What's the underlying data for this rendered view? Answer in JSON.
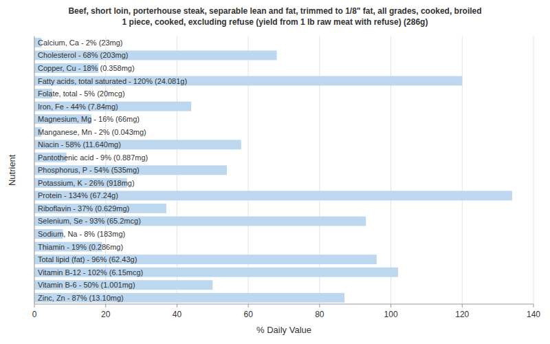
{
  "chart_data": {
    "type": "bar",
    "orientation": "horizontal",
    "title": "Beef, short loin, porterhouse steak, separable lean and fat, trimmed to 1/8\" fat, all grades, cooked, broiled\n1 piece, cooked, excluding refuse (yield from 1 lb raw meat with refuse) (286g)",
    "xlabel": "% Daily Value",
    "ylabel": "Nutrient",
    "categories": [
      "Calcium, Ca - 2% (23mg)",
      "Cholesterol - 68% (203mg)",
      "Copper, Cu - 18% (0.358mg)",
      "Fatty acids, total saturated - 120% (24.081g)",
      "Folate, total - 5% (20mcg)",
      "Iron, Fe - 44% (7.84mg)",
      "Magnesium, Mg - 16% (66mg)",
      "Manganese, Mn - 2% (0.043mg)",
      "Niacin - 58% (11.640mg)",
      "Pantothenic acid - 9% (0.887mg)",
      "Phosphorus, P - 54% (535mg)",
      "Potassium, K - 26% (918mg)",
      "Protein - 134% (67.24g)",
      "Riboflavin - 37% (0.629mg)",
      "Selenium, Se - 93% (65.2mcg)",
      "Sodium, Na - 8% (183mg)",
      "Thiamin - 19% (0.286mg)",
      "Total lipid (fat) - 96% (62.43g)",
      "Vitamin B-12 - 102% (6.15mcg)",
      "Vitamin B-6 - 50% (1.001mg)",
      "Zinc, Zn - 87% (13.10mg)"
    ],
    "values": [
      2,
      68,
      18,
      120,
      5,
      44,
      16,
      2,
      58,
      9,
      54,
      26,
      134,
      37,
      93,
      8,
      19,
      96,
      102,
      50,
      87
    ],
    "color": "#bdd7ee",
    "xlim": [
      0,
      140
    ],
    "xticks": [
      0,
      20,
      40,
      60,
      80,
      100,
      120,
      140
    ],
    "grid": true,
    "tick_labels": "x"
  }
}
